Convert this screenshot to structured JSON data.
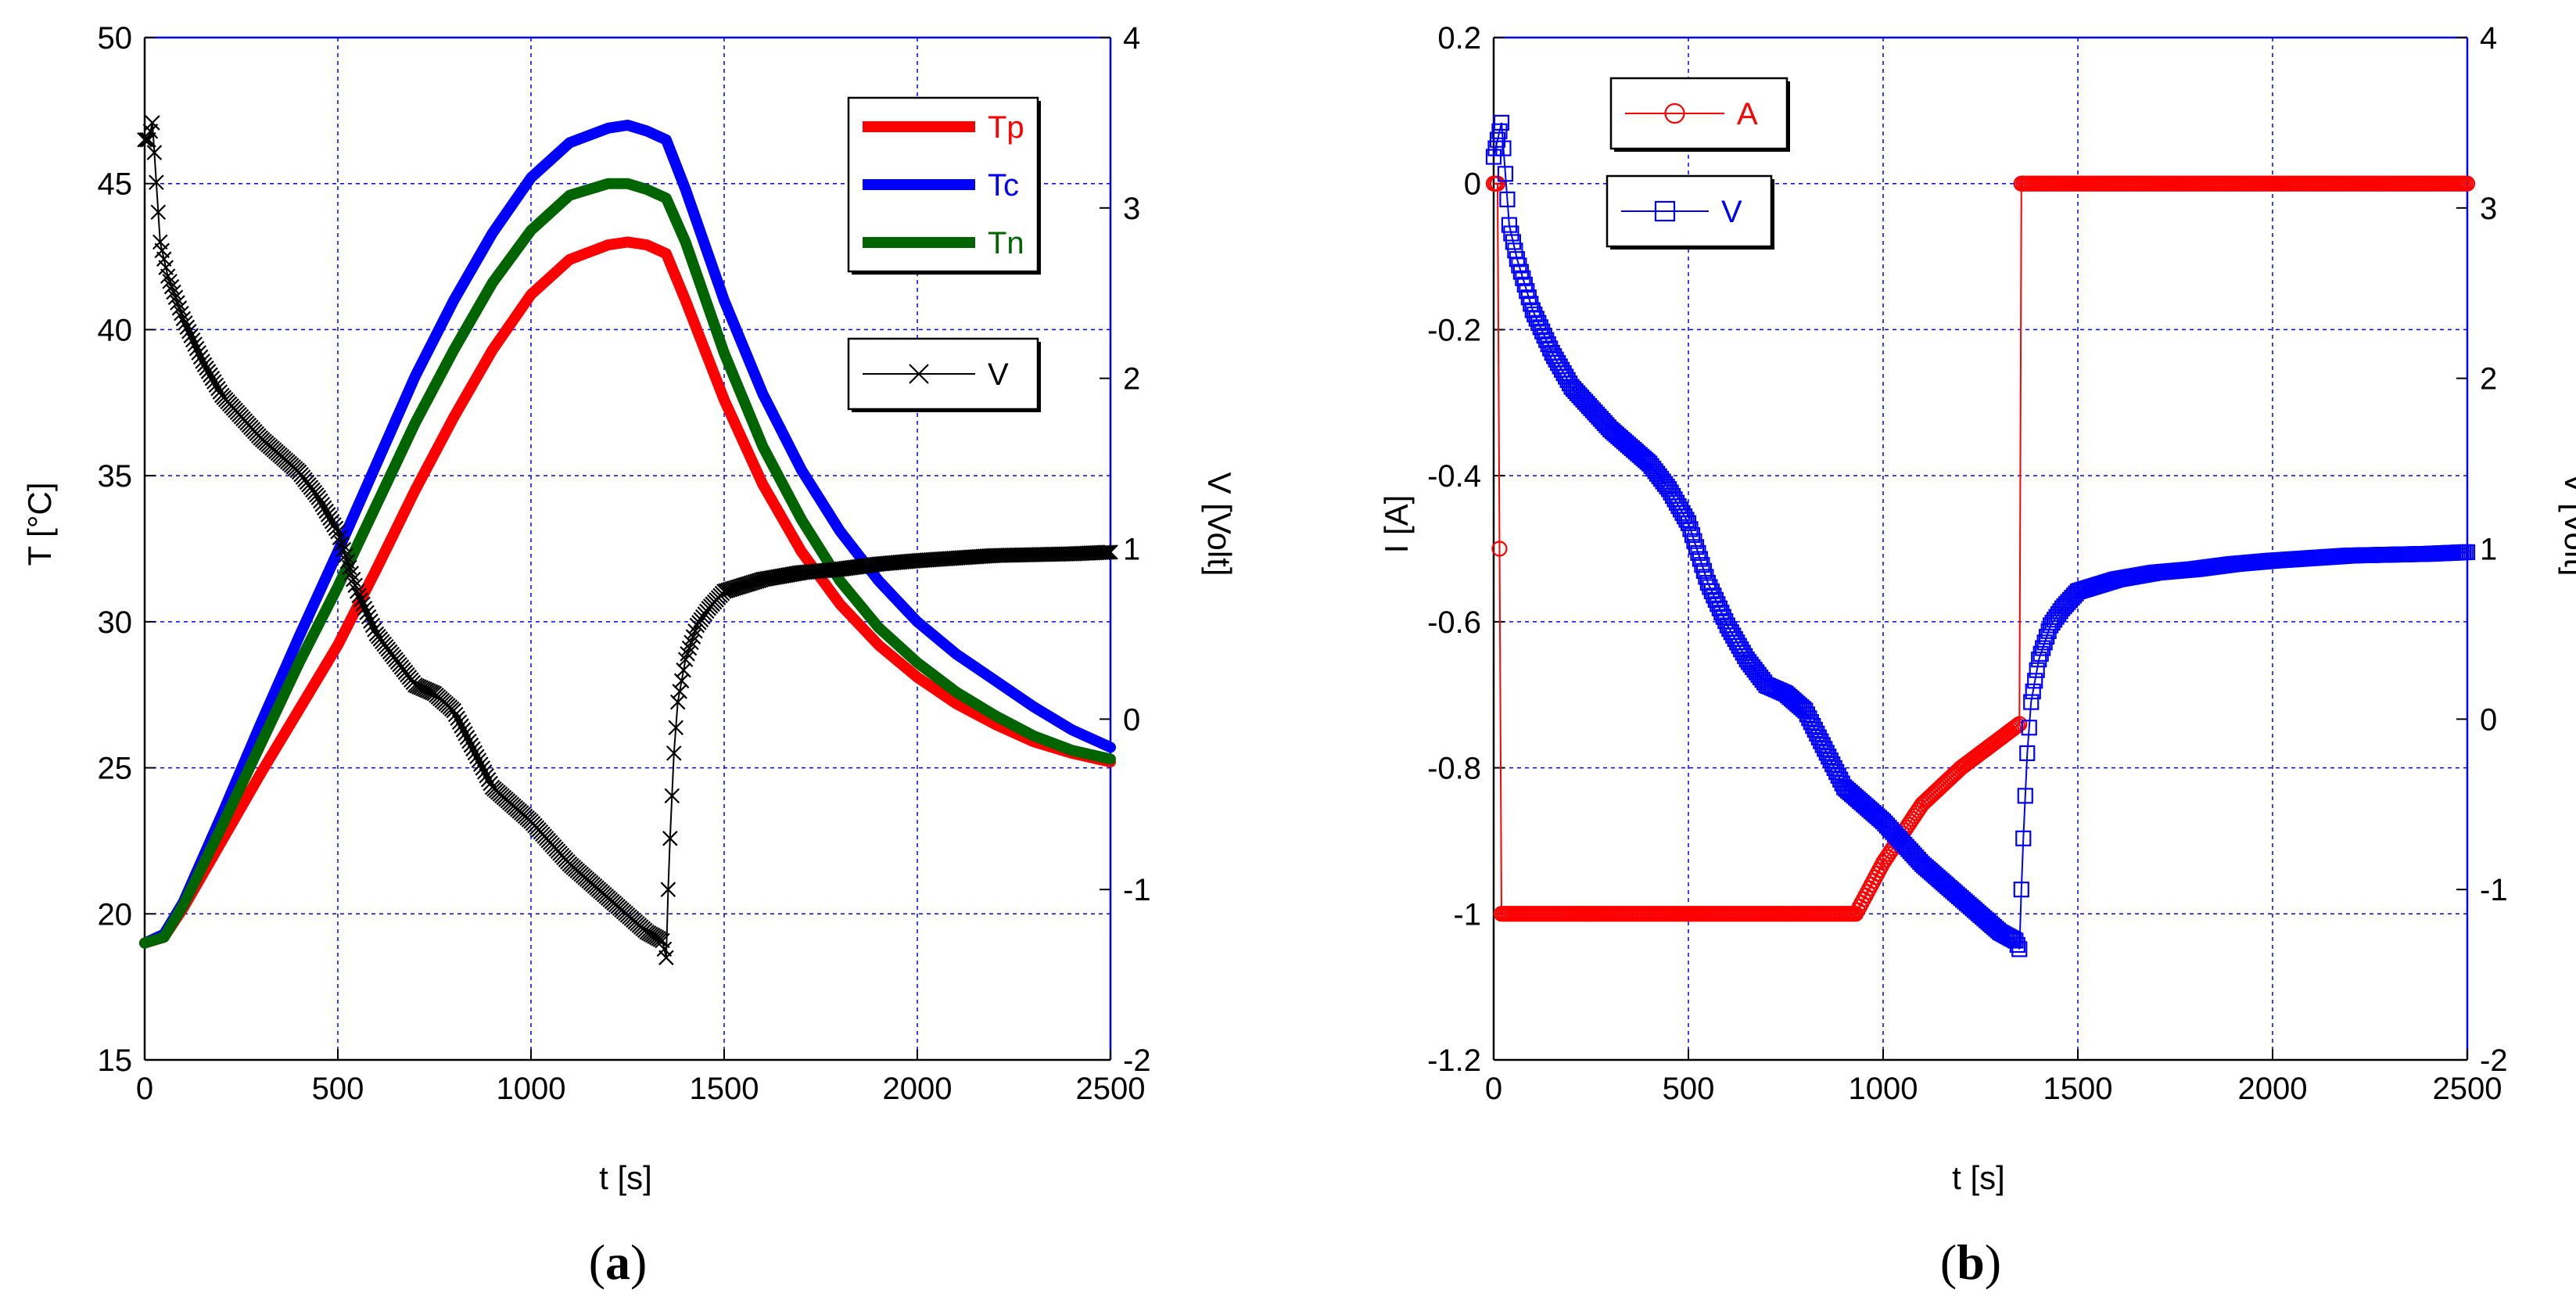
{
  "chart_data": [
    {
      "type": "line",
      "panel_label": "a",
      "xlabel": "t [s]",
      "ylabel": "T [°C]",
      "y2label": "V [Volt]",
      "xlim": [
        0,
        2500
      ],
      "ylim": [
        15,
        50
      ],
      "y2lim": [
        -2,
        4
      ],
      "xticks": [
        "0",
        "500",
        "1000",
        "1500",
        "2000",
        "2500"
      ],
      "yticks": [
        "15",
        "20",
        "25",
        "30",
        "35",
        "40",
        "45",
        "50"
      ],
      "y2ticks": [
        "-2",
        "-1",
        "0",
        "1",
        "2",
        "3",
        "4"
      ],
      "grid": true,
      "legend": [
        "top-right",
        "right"
      ],
      "series": [
        {
          "name": "Tp",
          "axis": "left",
          "color": "#ff0000",
          "marker": "none",
          "x": [
            0,
            50,
            100,
            200,
            300,
            400,
            500,
            600,
            700,
            800,
            900,
            1000,
            1100,
            1200,
            1250,
            1300,
            1350,
            1400,
            1500,
            1600,
            1700,
            1800,
            1900,
            2000,
            2100,
            2200,
            2300,
            2400,
            2500
          ],
          "y": [
            19,
            19.2,
            20.2,
            22.5,
            24.8,
            27,
            29.2,
            31.8,
            34.5,
            37,
            39.3,
            41.2,
            42.4,
            42.9,
            43,
            42.9,
            42.6,
            41,
            37.6,
            34.7,
            32.4,
            30.6,
            29.2,
            28.1,
            27.2,
            26.5,
            25.9,
            25.5,
            25.2
          ]
        },
        {
          "name": "Tc",
          "axis": "left",
          "color": "#0000ff",
          "marker": "none",
          "x": [
            0,
            50,
            100,
            200,
            300,
            400,
            500,
            600,
            700,
            800,
            900,
            1000,
            1100,
            1200,
            1250,
            1300,
            1350,
            1400,
            1500,
            1600,
            1700,
            1800,
            1900,
            2000,
            2100,
            2200,
            2300,
            2400,
            2500
          ],
          "y": [
            19,
            19.3,
            20.4,
            23.4,
            26.5,
            29.5,
            32.4,
            35.4,
            38.4,
            41,
            43.3,
            45.2,
            46.4,
            46.9,
            47,
            46.8,
            46.5,
            44.8,
            41,
            37.8,
            35.2,
            33.1,
            31.4,
            30,
            28.9,
            28,
            27.1,
            26.3,
            25.7
          ]
        },
        {
          "name": "Tn",
          "axis": "left",
          "color": "#006400",
          "marker": "none",
          "x": [
            0,
            50,
            100,
            200,
            300,
            400,
            500,
            600,
            700,
            800,
            900,
            1000,
            1100,
            1200,
            1250,
            1300,
            1350,
            1400,
            1500,
            1600,
            1700,
            1800,
            1900,
            2000,
            2100,
            2200,
            2300,
            2400,
            2500
          ],
          "y": [
            19,
            19.2,
            20.3,
            23,
            25.8,
            28.6,
            31.2,
            34,
            36.8,
            39.3,
            41.6,
            43.4,
            44.6,
            45,
            45,
            44.8,
            44.5,
            43,
            39.2,
            36,
            33.5,
            31.4,
            29.8,
            28.6,
            27.6,
            26.8,
            26.1,
            25.6,
            25.3
          ]
        },
        {
          "name": "V",
          "axis": "right",
          "color": "#000000",
          "marker": "x",
          "x": [
            0,
            10,
            20,
            40,
            60,
            100,
            150,
            200,
            300,
            400,
            450,
            500,
            550,
            600,
            650,
            700,
            750,
            800,
            900,
            1000,
            1100,
            1200,
            1300,
            1340,
            1350,
            1355,
            1360,
            1370,
            1380,
            1400,
            1430,
            1460,
            1500,
            1600,
            1700,
            1800,
            1900,
            2000,
            2200,
            2400,
            2500
          ],
          "y": [
            3.4,
            3.4,
            3.5,
            2.8,
            2.6,
            2.35,
            2.1,
            1.9,
            1.65,
            1.45,
            1.3,
            1.1,
            0.75,
            0.5,
            0.35,
            0.2,
            0.15,
            0.05,
            -0.4,
            -0.6,
            -0.85,
            -1.05,
            -1.25,
            -1.3,
            -1.4,
            -1.0,
            -0.7,
            -0.2,
            0.1,
            0.35,
            0.55,
            0.65,
            0.75,
            0.82,
            0.86,
            0.88,
            0.91,
            0.93,
            0.96,
            0.97,
            0.98
          ]
        }
      ]
    },
    {
      "type": "line",
      "panel_label": "b",
      "xlabel": "t [s]",
      "ylabel": "I [A]",
      "y2label": "V [Volt]",
      "xlim": [
        0,
        2500
      ],
      "ylim": [
        -1.2,
        0.2
      ],
      "y2lim": [
        -2,
        4
      ],
      "xticks": [
        "0",
        "500",
        "1000",
        "1500",
        "2000",
        "2500"
      ],
      "yticks": [
        "-1.2",
        "-1",
        "-0.8",
        "-0.6",
        "-0.4",
        "-0.2",
        "0",
        "0.2"
      ],
      "y2ticks": [
        "-2",
        "-1",
        "0",
        "1",
        "2",
        "3",
        "4"
      ],
      "grid": true,
      "legend": [
        "top-left",
        "top-left"
      ],
      "series": [
        {
          "name": "A",
          "axis": "left",
          "color": "#ff0000",
          "marker": "o",
          "x": [
            0,
            10,
            20,
            25,
            100,
            300,
            500,
            700,
            900,
            930,
            1000,
            1100,
            1200,
            1300,
            1350,
            1355,
            1360,
            1500,
            1800,
            2000,
            2200,
            2500
          ],
          "y": [
            0,
            0,
            -1,
            -1,
            -1,
            -1,
            -1,
            -1,
            -1,
            -1,
            -0.93,
            -0.85,
            -0.8,
            -0.76,
            -0.74,
            0,
            0,
            0,
            0,
            0,
            0,
            0
          ]
        },
        {
          "name": "V",
          "axis": "right",
          "color": "#0000ff",
          "marker": "square",
          "x": [
            0,
            10,
            20,
            40,
            60,
            100,
            150,
            200,
            300,
            400,
            450,
            500,
            550,
            600,
            650,
            700,
            750,
            800,
            900,
            1000,
            1100,
            1200,
            1300,
            1340,
            1350,
            1355,
            1360,
            1370,
            1380,
            1400,
            1430,
            1460,
            1500,
            1600,
            1700,
            1800,
            1900,
            2000,
            2200,
            2400,
            2500
          ],
          "y": [
            3.3,
            3.4,
            3.5,
            2.9,
            2.7,
            2.4,
            2.15,
            1.95,
            1.7,
            1.5,
            1.35,
            1.15,
            0.8,
            0.55,
            0.35,
            0.2,
            0.15,
            0.05,
            -0.4,
            -0.6,
            -0.85,
            -1.05,
            -1.25,
            -1.3,
            -1.35,
            -1.0,
            -0.7,
            -0.2,
            0.1,
            0.35,
            0.55,
            0.65,
            0.75,
            0.82,
            0.86,
            0.88,
            0.91,
            0.93,
            0.96,
            0.97,
            0.98
          ]
        }
      ]
    }
  ]
}
